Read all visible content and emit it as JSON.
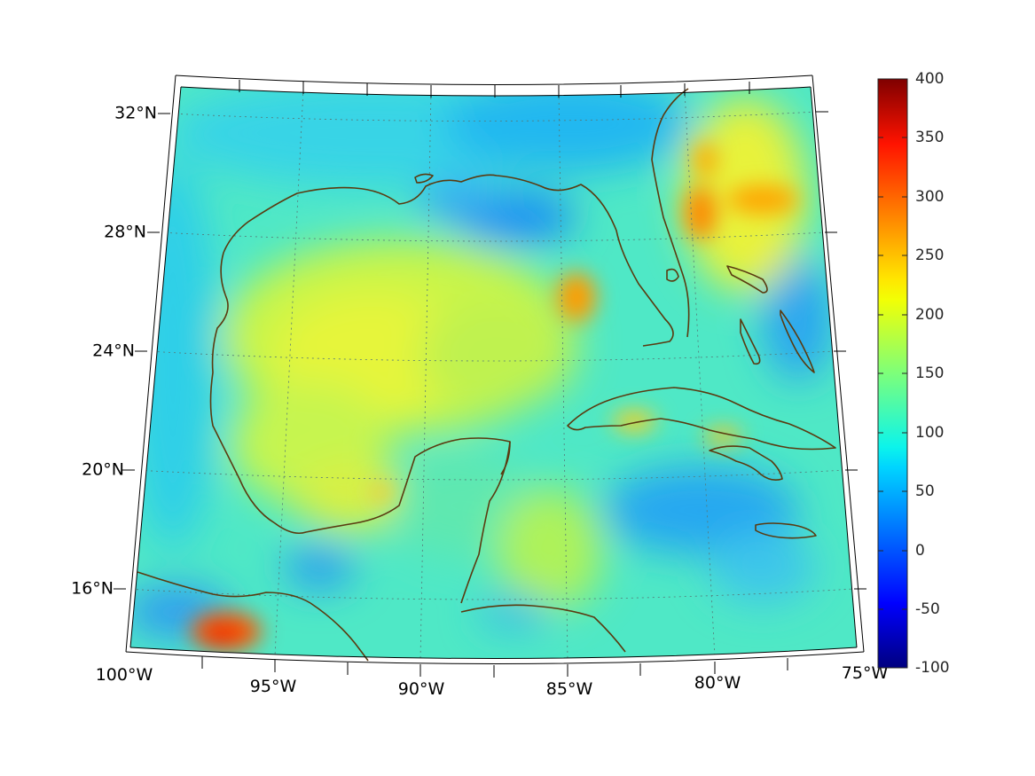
{
  "map": {
    "projection": "conic",
    "lon_range": [
      -100,
      -75
    ],
    "lat_range": [
      14,
      33
    ],
    "lat_labels": [
      "32°N",
      "28°N",
      "24°N",
      "20°N",
      "16°N"
    ],
    "lon_labels": [
      "100°W",
      "95°W",
      "90°W",
      "85°W",
      "80°W",
      "75°W"
    ],
    "grid_lines": "dotted",
    "coastline_color": "#5a3a10"
  },
  "colorbar": {
    "colormap": "jet",
    "range": [
      -100,
      400
    ],
    "tick_labels": [
      "400",
      "350",
      "300",
      "250",
      "200",
      "150",
      "100",
      "50",
      "0",
      "-50",
      "-100"
    ],
    "placement": "right"
  },
  "field": {
    "background_value": 120,
    "features": [
      {
        "region": "western-caribbean-coast",
        "lon": -96.5,
        "lat": 14.8,
        "value": 280
      },
      {
        "region": "east-gulf-eddy",
        "lon": -85.0,
        "lat": 25.5,
        "value": 250
      },
      {
        "region": "off-florida-atlantic",
        "lon": -79.8,
        "lat": 28.2,
        "value": 260
      },
      {
        "region": "central-gulf",
        "lon": -90.0,
        "lat": 24.0,
        "value": 200
      },
      {
        "region": "northeast-gulf-low",
        "lon": -86.5,
        "lat": 28.0,
        "value": 60
      },
      {
        "region": "caribbean-south-of-cuba",
        "lon": -80.0,
        "lat": 18.5,
        "value": 70
      }
    ]
  }
}
